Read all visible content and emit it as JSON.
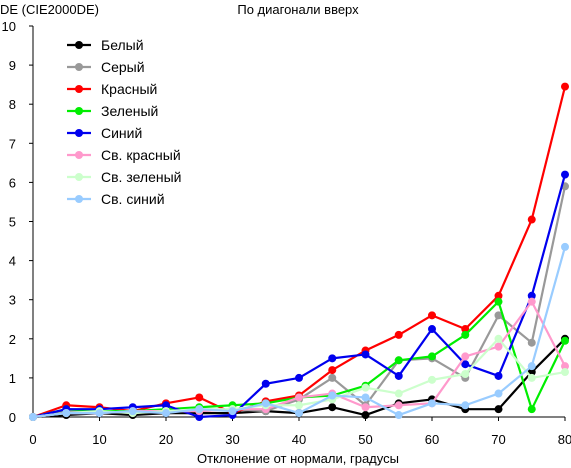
{
  "chart_data": {
    "type": "line",
    "title": "По диагонали вверх",
    "ylabel": "DE (CIE2000DE)",
    "xlabel": "Отклонение от нормали, градусы",
    "x": [
      0,
      5,
      10,
      15,
      20,
      25,
      30,
      35,
      40,
      45,
      50,
      55,
      60,
      65,
      70,
      75,
      80
    ],
    "xlim": [
      0,
      80
    ],
    "ylim": [
      0,
      10
    ],
    "xticks": [
      0,
      10,
      20,
      30,
      40,
      50,
      60,
      70,
      80
    ],
    "yticks": [
      0,
      1,
      2,
      3,
      4,
      5,
      6,
      7,
      8,
      9,
      10
    ],
    "grid": false,
    "legend_position": "top-left",
    "series": [
      {
        "name": "Белый",
        "color": "#000000",
        "values": [
          0.0,
          0.05,
          0.1,
          0.05,
          0.1,
          0.1,
          0.1,
          0.15,
          0.1,
          0.25,
          0.05,
          0.35,
          0.45,
          0.2,
          0.2,
          1.15,
          2.0
        ]
      },
      {
        "name": "Серый",
        "color": "#999999",
        "values": [
          0.0,
          0.15,
          0.15,
          0.1,
          0.2,
          0.15,
          0.2,
          0.15,
          0.45,
          1.0,
          0.3,
          1.45,
          1.5,
          1.0,
          2.6,
          1.9,
          5.9
        ]
      },
      {
        "name": "Красный",
        "color": "#ff0000",
        "values": [
          0.0,
          0.3,
          0.25,
          0.15,
          0.35,
          0.5,
          0.1,
          0.4,
          0.55,
          1.2,
          1.7,
          2.1,
          2.6,
          2.25,
          3.1,
          5.05,
          8.45
        ]
      },
      {
        "name": "Зеленый",
        "color": "#00ee00",
        "values": [
          0.0,
          0.2,
          0.15,
          0.15,
          0.2,
          0.25,
          0.3,
          0.35,
          0.5,
          0.55,
          0.8,
          1.45,
          1.55,
          2.1,
          2.95,
          0.2,
          1.95
        ]
      },
      {
        "name": "Синий",
        "color": "#0000ee",
        "values": [
          0.0,
          0.2,
          0.2,
          0.25,
          0.3,
          0.0,
          0.05,
          0.85,
          1.0,
          1.5,
          1.6,
          1.05,
          2.25,
          1.35,
          1.05,
          3.1,
          6.2
        ]
      },
      {
        "name": "Св. красный",
        "color": "#ff99cc",
        "values": [
          0.0,
          0.1,
          0.1,
          0.15,
          0.15,
          0.15,
          0.2,
          0.2,
          0.5,
          0.6,
          0.25,
          0.3,
          0.35,
          1.55,
          1.8,
          2.95,
          1.3
        ]
      },
      {
        "name": "Св. зеленый",
        "color": "#ccffcc",
        "values": [
          0.0,
          0.1,
          0.15,
          0.1,
          0.15,
          0.2,
          0.2,
          0.3,
          0.3,
          0.45,
          0.75,
          0.6,
          0.95,
          1.1,
          2.0,
          1.0,
          1.15
        ]
      },
      {
        "name": "Св. синий",
        "color": "#99ccff",
        "values": [
          0.0,
          0.1,
          0.1,
          0.15,
          0.1,
          0.2,
          0.15,
          0.35,
          0.1,
          0.55,
          0.5,
          0.05,
          0.35,
          0.3,
          0.6,
          1.3,
          4.35
        ]
      }
    ]
  }
}
